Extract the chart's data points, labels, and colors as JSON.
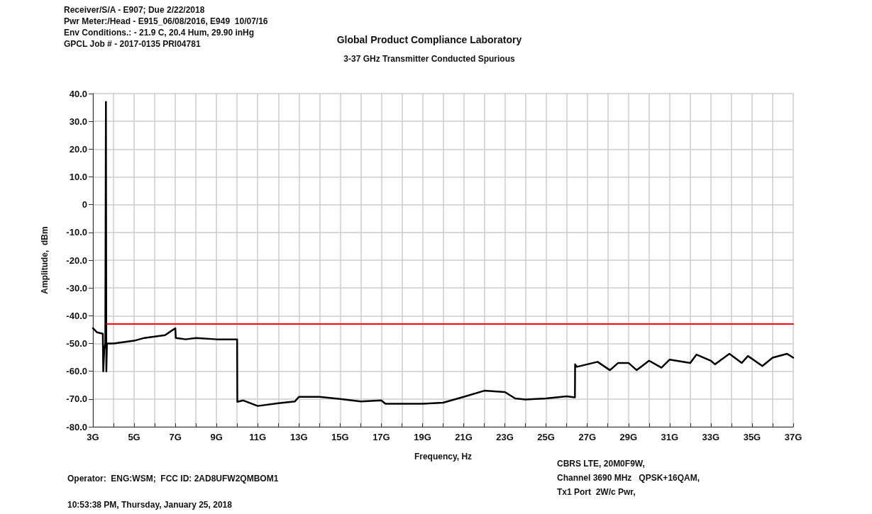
{
  "chart_data": {
    "type": "line",
    "title": "Global Product Compliance Laboratory",
    "subtitle": "3-37 GHz Transmitter Conducted Spurious",
    "xlabel": "Frequency, Hz",
    "ylabel": "Amplitude,  dBm",
    "annotations": [
      "Receiver/S/A - E907; Due 2/22/2018",
      "Pwr Meter:/Head - E915_06/08/2016, E949  10/07/16",
      "Env Conditions.: - 21.9 C, 20.4 Hum, 29.90 inHg",
      "GPCL Job # - 2017-0135 PRI04781",
      "Operator:  ENG:WSM;  FCC ID: 2AD8UFW2QMBOM1",
      "10:53:38 PM, Thursday, January 25, 2018",
      "CBRS LTE, 20M0F9W,",
      "Channel 3690 MHz   QPSK+16QAM,",
      "Tx1 Port  2W/c Pwr,"
    ],
    "series": [
      {
        "color": "#000000",
        "x": [
          3.0,
          3.2,
          3.48,
          3.5,
          3.55,
          3.6,
          3.63,
          3.65,
          3.68,
          4.0,
          4.5,
          5.0,
          5.5,
          6.0,
          6.5,
          6.8,
          7.0,
          7.02,
          7.5,
          8.0,
          9.0,
          10.0,
          10.01,
          10.3,
          11.0,
          12.0,
          12.8,
          13.0,
          14.0,
          15.0,
          16.0,
          17.0,
          17.2,
          18.0,
          19.0,
          20.0,
          21.0,
          22.0,
          23.0,
          23.5,
          24.0,
          25.0,
          26.0,
          26.4,
          26.41,
          26.5,
          27.0,
          27.5,
          28.1,
          28.5,
          29.0,
          29.4,
          30.0,
          30.6,
          31.0,
          32.0,
          32.3,
          33.0,
          33.2,
          33.9,
          34.5,
          34.8,
          35.5,
          36.0,
          36.7,
          37.0
        ],
        "values": [
          -44.5,
          -46,
          -46.5,
          -60,
          -52,
          -50,
          37,
          -60,
          -50,
          -50,
          -49.5,
          -49,
          -48,
          -47.5,
          -47,
          -45.5,
          -44.5,
          -48,
          -48.5,
          -48,
          -48.5,
          -48.5,
          -71,
          -70.5,
          -72.5,
          -71.5,
          -70.9,
          -69.2,
          -69.2,
          -70,
          -70.9,
          -70.5,
          -71.7,
          -71.7,
          -71.7,
          -71.3,
          -69.2,
          -67,
          -67.5,
          -69.8,
          -70.2,
          -69.8,
          -69,
          -69.4,
          -57.5,
          -58.4,
          -57.5,
          -56.6,
          -59.6,
          -57,
          -57,
          -59.6,
          -56.2,
          -58.7,
          -55.8,
          -57,
          -54,
          -56.2,
          -57.5,
          -53.7,
          -57,
          -54.5,
          -58.1,
          -55.1,
          -53.7,
          -55.1
        ]
      },
      {
        "color": "#ff0000",
        "x": [
          3.68,
          37
        ],
        "values": [
          -43,
          -43
        ]
      }
    ],
    "xlim": [
      3,
      37
    ],
    "xticks": [
      {
        "value": 3,
        "label": "3G"
      },
      {
        "value": 4,
        "label": null
      },
      {
        "value": 5,
        "label": "5G"
      },
      {
        "value": 6,
        "label": null
      },
      {
        "value": 7,
        "label": "7G"
      },
      {
        "value": 8,
        "label": null
      },
      {
        "value": 9,
        "label": "9G"
      },
      {
        "value": 10,
        "label": null
      },
      {
        "value": 11,
        "label": "11G"
      },
      {
        "value": 12,
        "label": null
      },
      {
        "value": 13,
        "label": "13G"
      },
      {
        "value": 14,
        "label": null
      },
      {
        "value": 15,
        "label": "15G"
      },
      {
        "value": 16,
        "label": null
      },
      {
        "value": 17,
        "label": "17G"
      },
      {
        "value": 18,
        "label": null
      },
      {
        "value": 19,
        "label": "19G"
      },
      {
        "value": 20,
        "label": null
      },
      {
        "value": 21,
        "label": "21G"
      },
      {
        "value": 22,
        "label": null
      },
      {
        "value": 23,
        "label": "23G"
      },
      {
        "value": 24,
        "label": null
      },
      {
        "value": 25,
        "label": "25G"
      },
      {
        "value": 26,
        "label": null
      },
      {
        "value": 27,
        "label": "27G"
      },
      {
        "value": 28,
        "label": null
      },
      {
        "value": 29,
        "label": "29G"
      },
      {
        "value": 30,
        "label": null
      },
      {
        "value": 31,
        "label": "31G"
      },
      {
        "value": 32,
        "label": null
      },
      {
        "value": 33,
        "label": "33G"
      },
      {
        "value": 34,
        "label": null
      },
      {
        "value": 35,
        "label": "35G"
      },
      {
        "value": 36,
        "label": null
      },
      {
        "value": 37,
        "label": "37G"
      }
    ],
    "ylim": [
      -80,
      40
    ],
    "yticks": [
      {
        "value": -80,
        "label": "-80.0"
      },
      {
        "value": -70,
        "label": "-70.0"
      },
      {
        "value": -60,
        "label": "-60.0"
      },
      {
        "value": -50,
        "label": "-50.0"
      },
      {
        "value": -40,
        "label": "-40.0"
      },
      {
        "value": -30,
        "label": "-30.0"
      },
      {
        "value": -20,
        "label": "-20.0"
      },
      {
        "value": -10,
        "label": "-10.0"
      },
      {
        "value": 0,
        "label": "0"
      },
      {
        "value": 10,
        "label": "10.0"
      },
      {
        "value": 20,
        "label": "20.0"
      },
      {
        "value": 30,
        "label": "30.0"
      },
      {
        "value": 40,
        "label": "40.0"
      }
    ],
    "grid": true,
    "marker": "none",
    "line_style": "solid"
  }
}
